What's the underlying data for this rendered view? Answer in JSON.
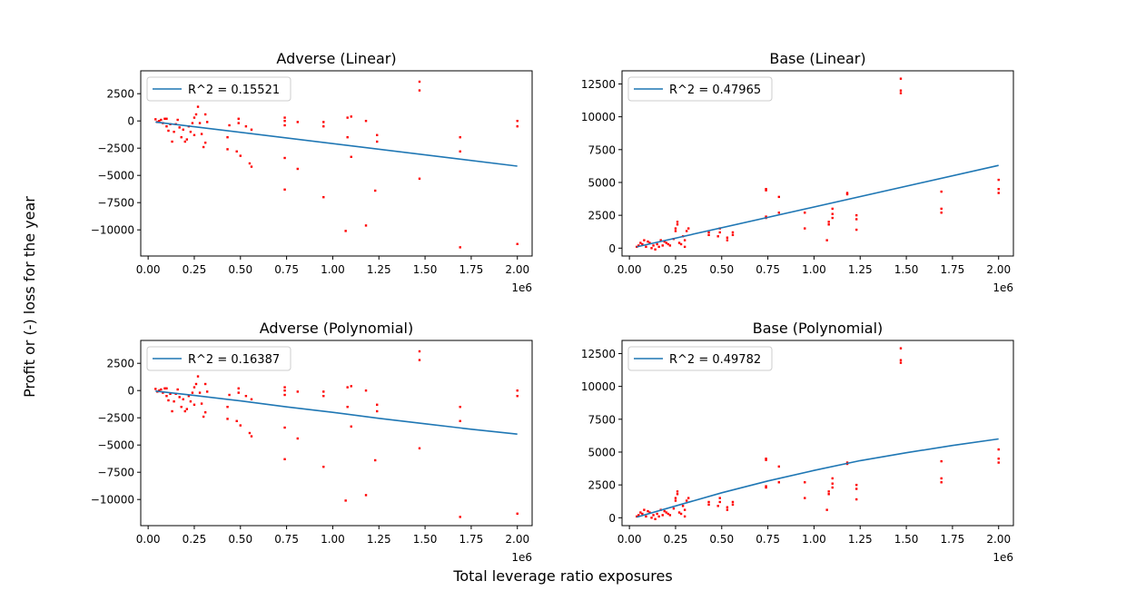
{
  "figure": {
    "ylabel": "Profit or (-) loss for the year",
    "xlabel": "Total leverage ratio exposures"
  },
  "chart_data": [
    {
      "type": "scatter",
      "title": "Adverse (Linear)",
      "xlabel": "",
      "ylabel": "",
      "xlim": [
        -0.04,
        2.08
      ],
      "ylim": [
        -12400,
        4600
      ],
      "x_scale_label": "1e6",
      "xticks": [
        0.0,
        0.25,
        0.5,
        0.75,
        1.0,
        1.25,
        1.5,
        1.75,
        2.0
      ],
      "xtick_labels": [
        "0.00",
        "0.25",
        "0.50",
        "0.75",
        "1.00",
        "1.25",
        "1.50",
        "1.75",
        "2.00"
      ],
      "yticks": [
        2500,
        0,
        -2500,
        -5000,
        -7500,
        -10000
      ],
      "ytick_labels": [
        "2500",
        "0",
        "−2500",
        "−5000",
        "−7500",
        "−10000"
      ],
      "points": [
        [
          0.04,
          150
        ],
        [
          0.05,
          -100
        ],
        [
          0.06,
          0
        ],
        [
          0.07,
          100
        ],
        [
          0.08,
          -200
        ],
        [
          0.09,
          200
        ],
        [
          0.1,
          -500
        ],
        [
          0.1,
          200
        ],
        [
          0.11,
          -900
        ],
        [
          0.12,
          -300
        ],
        [
          0.13,
          -1900
        ],
        [
          0.14,
          -1000
        ],
        [
          0.15,
          -300
        ],
        [
          0.16,
          100
        ],
        [
          0.17,
          -600
        ],
        [
          0.18,
          -1500
        ],
        [
          0.19,
          -800
        ],
        [
          0.2,
          -1900
        ],
        [
          0.21,
          -1700
        ],
        [
          0.22,
          -500
        ],
        [
          0.23,
          -1000
        ],
        [
          0.24,
          -200
        ],
        [
          0.25,
          300
        ],
        [
          0.25,
          -1300
        ],
        [
          0.26,
          600
        ],
        [
          0.27,
          1300
        ],
        [
          0.28,
          -200
        ],
        [
          0.29,
          -1200
        ],
        [
          0.3,
          -2400
        ],
        [
          0.31,
          -2000
        ],
        [
          0.31,
          600
        ],
        [
          0.32,
          -100
        ],
        [
          0.43,
          -1500
        ],
        [
          0.43,
          -2600
        ],
        [
          0.44,
          -400
        ],
        [
          0.48,
          -2800
        ],
        [
          0.49,
          -200
        ],
        [
          0.49,
          200
        ],
        [
          0.5,
          -3200
        ],
        [
          0.53,
          -500
        ],
        [
          0.55,
          -3900
        ],
        [
          0.56,
          -4200
        ],
        [
          0.56,
          -800
        ],
        [
          0.74,
          300
        ],
        [
          0.74,
          0
        ],
        [
          0.74,
          -400
        ],
        [
          0.74,
          -3400
        ],
        [
          0.74,
          -6300
        ],
        [
          0.81,
          -100
        ],
        [
          0.81,
          -4400
        ],
        [
          0.95,
          -100
        ],
        [
          0.95,
          -500
        ],
        [
          0.95,
          -7000
        ],
        [
          1.07,
          -10100
        ],
        [
          1.08,
          -1500
        ],
        [
          1.08,
          300
        ],
        [
          1.1,
          400
        ],
        [
          1.1,
          -3300
        ],
        [
          1.18,
          -9600
        ],
        [
          1.18,
          0
        ],
        [
          1.23,
          -6400
        ],
        [
          1.24,
          -1300
        ],
        [
          1.24,
          -1900
        ],
        [
          1.47,
          3600
        ],
        [
          1.47,
          2800
        ],
        [
          1.47,
          -5300
        ],
        [
          1.69,
          -11600
        ],
        [
          1.69,
          -1500
        ],
        [
          1.69,
          -2800
        ],
        [
          2.0,
          0
        ],
        [
          2.0,
          -11300
        ],
        [
          2.0,
          -500
        ]
      ],
      "fit": {
        "kind": "linear",
        "x": [
          0.04,
          2.0
        ],
        "y": [
          -100,
          -4150
        ]
      },
      "legend": {
        "label": "R^2 = 0.15521",
        "position": "upper left"
      }
    },
    {
      "type": "scatter",
      "title": "Base (Linear)",
      "xlabel": "",
      "ylabel": "",
      "xlim": [
        -0.04,
        2.08
      ],
      "ylim": [
        -600,
        13500
      ],
      "x_scale_label": "1e6",
      "xticks": [
        0.0,
        0.25,
        0.5,
        0.75,
        1.0,
        1.25,
        1.5,
        1.75,
        2.0
      ],
      "xtick_labels": [
        "0.00",
        "0.25",
        "0.50",
        "0.75",
        "1.00",
        "1.25",
        "1.50",
        "1.75",
        "2.00"
      ],
      "yticks": [
        12500,
        10000,
        7500,
        5000,
        2500,
        0
      ],
      "ytick_labels": [
        "12500",
        "10000",
        "7500",
        "5000",
        "2500",
        "0"
      ],
      "points": [
        [
          0.04,
          100
        ],
        [
          0.05,
          200
        ],
        [
          0.06,
          400
        ],
        [
          0.07,
          300
        ],
        [
          0.08,
          600
        ],
        [
          0.09,
          100
        ],
        [
          0.1,
          500
        ],
        [
          0.11,
          400
        ],
        [
          0.12,
          0
        ],
        [
          0.13,
          200
        ],
        [
          0.14,
          -100
        ],
        [
          0.15,
          300
        ],
        [
          0.16,
          100
        ],
        [
          0.17,
          600
        ],
        [
          0.18,
          200
        ],
        [
          0.19,
          500
        ],
        [
          0.2,
          400
        ],
        [
          0.21,
          300
        ],
        [
          0.22,
          200
        ],
        [
          0.24,
          700
        ],
        [
          0.25,
          1300
        ],
        [
          0.25,
          1500
        ],
        [
          0.26,
          1800
        ],
        [
          0.26,
          2000
        ],
        [
          0.27,
          400
        ],
        [
          0.28,
          300
        ],
        [
          0.29,
          900
        ],
        [
          0.3,
          600
        ],
        [
          0.3,
          100
        ],
        [
          0.31,
          1300
        ],
        [
          0.32,
          1500
        ],
        [
          0.43,
          1000
        ],
        [
          0.43,
          1200
        ],
        [
          0.48,
          900
        ],
        [
          0.49,
          1500
        ],
        [
          0.49,
          1200
        ],
        [
          0.53,
          800
        ],
        [
          0.53,
          600
        ],
        [
          0.56,
          1000
        ],
        [
          0.56,
          1200
        ],
        [
          0.74,
          2300
        ],
        [
          0.74,
          2400
        ],
        [
          0.74,
          4400
        ],
        [
          0.74,
          4500
        ],
        [
          0.81,
          2700
        ],
        [
          0.81,
          3900
        ],
        [
          0.95,
          1500
        ],
        [
          0.95,
          2700
        ],
        [
          1.07,
          600
        ],
        [
          1.08,
          1800
        ],
        [
          1.08,
          2000
        ],
        [
          1.1,
          2300
        ],
        [
          1.1,
          2600
        ],
        [
          1.1,
          3000
        ],
        [
          1.18,
          4100
        ],
        [
          1.18,
          4200
        ],
        [
          1.23,
          1400
        ],
        [
          1.23,
          2200
        ],
        [
          1.23,
          2500
        ],
        [
          1.47,
          12000
        ],
        [
          1.47,
          11800
        ],
        [
          1.47,
          12900
        ],
        [
          1.69,
          2700
        ],
        [
          1.69,
          3000
        ],
        [
          1.69,
          4300
        ],
        [
          2.0,
          4200
        ],
        [
          2.0,
          4500
        ],
        [
          2.0,
          5200
        ]
      ],
      "fit": {
        "kind": "linear",
        "x": [
          0.04,
          2.0
        ],
        "y": [
          100,
          6300
        ]
      },
      "legend": {
        "label": "R^2 = 0.47965",
        "position": "upper left"
      }
    },
    {
      "type": "scatter",
      "title": "Adverse (Polynomial)",
      "xlabel": "",
      "ylabel": "",
      "xlim": [
        -0.04,
        2.08
      ],
      "ylim": [
        -12400,
        4600
      ],
      "x_scale_label": "1e6",
      "xticks": [
        0.0,
        0.25,
        0.5,
        0.75,
        1.0,
        1.25,
        1.5,
        1.75,
        2.0
      ],
      "xtick_labels": [
        "0.00",
        "0.25",
        "0.50",
        "0.75",
        "1.00",
        "1.25",
        "1.50",
        "1.75",
        "2.00"
      ],
      "yticks": [
        2500,
        0,
        -2500,
        -5000,
        -7500,
        -10000
      ],
      "ytick_labels": [
        "2500",
        "0",
        "−2500",
        "−5000",
        "−7500",
        "−10000"
      ],
      "points": [
        [
          0.04,
          150
        ],
        [
          0.05,
          -100
        ],
        [
          0.06,
          0
        ],
        [
          0.07,
          100
        ],
        [
          0.08,
          -200
        ],
        [
          0.09,
          200
        ],
        [
          0.1,
          -500
        ],
        [
          0.1,
          200
        ],
        [
          0.11,
          -900
        ],
        [
          0.12,
          -300
        ],
        [
          0.13,
          -1900
        ],
        [
          0.14,
          -1000
        ],
        [
          0.15,
          -300
        ],
        [
          0.16,
          100
        ],
        [
          0.17,
          -600
        ],
        [
          0.18,
          -1500
        ],
        [
          0.19,
          -800
        ],
        [
          0.2,
          -1900
        ],
        [
          0.21,
          -1700
        ],
        [
          0.22,
          -500
        ],
        [
          0.23,
          -1000
        ],
        [
          0.24,
          -200
        ],
        [
          0.25,
          300
        ],
        [
          0.25,
          -1300
        ],
        [
          0.26,
          600
        ],
        [
          0.27,
          1300
        ],
        [
          0.28,
          -200
        ],
        [
          0.29,
          -1200
        ],
        [
          0.3,
          -2400
        ],
        [
          0.31,
          -2000
        ],
        [
          0.31,
          600
        ],
        [
          0.32,
          -100
        ],
        [
          0.43,
          -1500
        ],
        [
          0.43,
          -2600
        ],
        [
          0.44,
          -400
        ],
        [
          0.48,
          -2800
        ],
        [
          0.49,
          -200
        ],
        [
          0.49,
          200
        ],
        [
          0.5,
          -3200
        ],
        [
          0.53,
          -500
        ],
        [
          0.55,
          -3900
        ],
        [
          0.56,
          -4200
        ],
        [
          0.56,
          -800
        ],
        [
          0.74,
          300
        ],
        [
          0.74,
          0
        ],
        [
          0.74,
          -400
        ],
        [
          0.74,
          -3400
        ],
        [
          0.74,
          -6300
        ],
        [
          0.81,
          -100
        ],
        [
          0.81,
          -4400
        ],
        [
          0.95,
          -100
        ],
        [
          0.95,
          -500
        ],
        [
          0.95,
          -7000
        ],
        [
          1.07,
          -10100
        ],
        [
          1.08,
          -1500
        ],
        [
          1.08,
          300
        ],
        [
          1.1,
          400
        ],
        [
          1.1,
          -3300
        ],
        [
          1.18,
          -9600
        ],
        [
          1.18,
          0
        ],
        [
          1.23,
          -6400
        ],
        [
          1.24,
          -1300
        ],
        [
          1.24,
          -1900
        ],
        [
          1.47,
          3600
        ],
        [
          1.47,
          2800
        ],
        [
          1.47,
          -5300
        ],
        [
          1.69,
          -11600
        ],
        [
          1.69,
          -1500
        ],
        [
          1.69,
          -2800
        ],
        [
          2.0,
          0
        ],
        [
          2.0,
          -11300
        ],
        [
          2.0,
          -500
        ]
      ],
      "fit": {
        "kind": "polynomial",
        "x": [
          0.04,
          0.25,
          0.5,
          0.75,
          1.0,
          1.25,
          1.5,
          1.75,
          2.0
        ],
        "y": [
          -50,
          -450,
          -950,
          -1500,
          -2000,
          -2550,
          -3050,
          -3550,
          -4000
        ]
      },
      "legend": {
        "label": "R^2 = 0.16387",
        "position": "upper left"
      }
    },
    {
      "type": "scatter",
      "title": "Base (Polynomial)",
      "xlabel": "",
      "ylabel": "",
      "xlim": [
        -0.04,
        2.08
      ],
      "ylim": [
        -600,
        13500
      ],
      "x_scale_label": "1e6",
      "xticks": [
        0.0,
        0.25,
        0.5,
        0.75,
        1.0,
        1.25,
        1.5,
        1.75,
        2.0
      ],
      "xtick_labels": [
        "0.00",
        "0.25",
        "0.50",
        "0.75",
        "1.00",
        "1.25",
        "1.50",
        "1.75",
        "2.00"
      ],
      "yticks": [
        12500,
        10000,
        7500,
        5000,
        2500,
        0
      ],
      "ytick_labels": [
        "12500",
        "10000",
        "7500",
        "5000",
        "2500",
        "0"
      ],
      "points": [
        [
          0.04,
          100
        ],
        [
          0.05,
          200
        ],
        [
          0.06,
          400
        ],
        [
          0.07,
          300
        ],
        [
          0.08,
          600
        ],
        [
          0.09,
          100
        ],
        [
          0.1,
          500
        ],
        [
          0.11,
          400
        ],
        [
          0.12,
          0
        ],
        [
          0.13,
          200
        ],
        [
          0.14,
          -100
        ],
        [
          0.15,
          300
        ],
        [
          0.16,
          100
        ],
        [
          0.17,
          600
        ],
        [
          0.18,
          200
        ],
        [
          0.19,
          500
        ],
        [
          0.2,
          400
        ],
        [
          0.21,
          300
        ],
        [
          0.22,
          200
        ],
        [
          0.24,
          700
        ],
        [
          0.25,
          1300
        ],
        [
          0.25,
          1500
        ],
        [
          0.26,
          1800
        ],
        [
          0.26,
          2000
        ],
        [
          0.27,
          400
        ],
        [
          0.28,
          300
        ],
        [
          0.29,
          900
        ],
        [
          0.3,
          600
        ],
        [
          0.3,
          100
        ],
        [
          0.31,
          1300
        ],
        [
          0.32,
          1500
        ],
        [
          0.43,
          1000
        ],
        [
          0.43,
          1200
        ],
        [
          0.48,
          900
        ],
        [
          0.49,
          1500
        ],
        [
          0.49,
          1200
        ],
        [
          0.53,
          800
        ],
        [
          0.53,
          600
        ],
        [
          0.56,
          1000
        ],
        [
          0.56,
          1200
        ],
        [
          0.74,
          2300
        ],
        [
          0.74,
          2400
        ],
        [
          0.74,
          4400
        ],
        [
          0.74,
          4500
        ],
        [
          0.81,
          2700
        ],
        [
          0.81,
          3900
        ],
        [
          0.95,
          1500
        ],
        [
          0.95,
          2700
        ],
        [
          1.07,
          600
        ],
        [
          1.08,
          1800
        ],
        [
          1.08,
          2000
        ],
        [
          1.1,
          2300
        ],
        [
          1.1,
          2600
        ],
        [
          1.1,
          3000
        ],
        [
          1.18,
          4100
        ],
        [
          1.18,
          4200
        ],
        [
          1.23,
          1400
        ],
        [
          1.23,
          2200
        ],
        [
          1.23,
          2500
        ],
        [
          1.47,
          12000
        ],
        [
          1.47,
          11800
        ],
        [
          1.47,
          12900
        ],
        [
          1.69,
          2700
        ],
        [
          1.69,
          3000
        ],
        [
          1.69,
          4300
        ],
        [
          2.0,
          4200
        ],
        [
          2.0,
          4500
        ],
        [
          2.0,
          5200
        ]
      ],
      "fit": {
        "kind": "polynomial",
        "x": [
          0.04,
          0.25,
          0.5,
          0.75,
          1.0,
          1.25,
          1.5,
          1.75,
          2.0
        ],
        "y": [
          50,
          900,
          1900,
          2800,
          3600,
          4350,
          4950,
          5500,
          6000
        ]
      },
      "legend": {
        "label": "R^2 = 0.49782",
        "position": "upper left"
      }
    }
  ],
  "colors": {
    "points": "#ff0000",
    "fit": "#1f77b4",
    "axes": "#000000",
    "legend_border": "#cccccc"
  }
}
